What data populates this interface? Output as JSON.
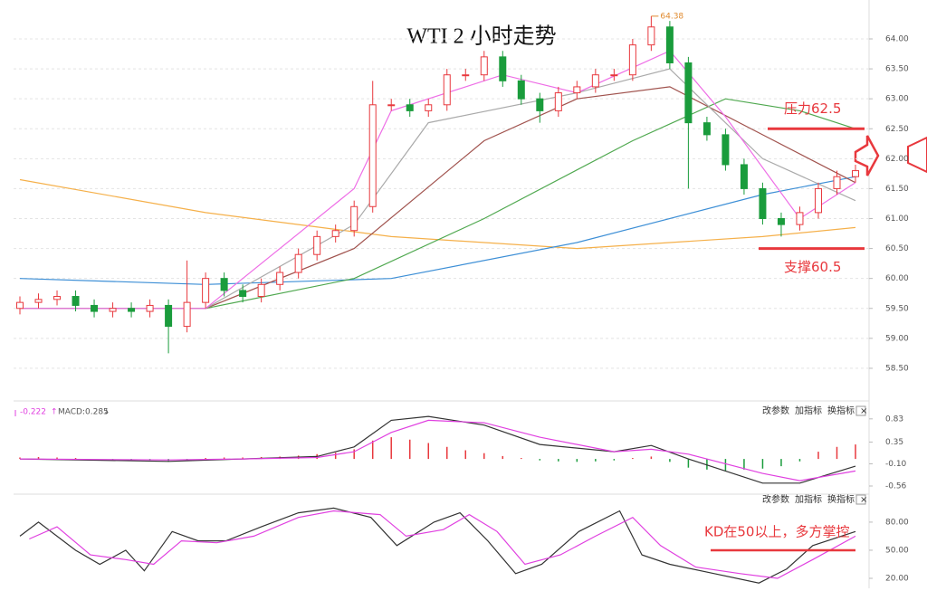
{
  "chart_data": [
    {
      "type": "candlestick",
      "title": "WTI 2 小时走势",
      "open": [
        59.5,
        59.6,
        59.65,
        59.7,
        59.55,
        59.45,
        59.5,
        59.45,
        59.55,
        59.2,
        59.6,
        60.0,
        59.8,
        59.7,
        59.9,
        60.1,
        60.4,
        60.7,
        60.8,
        61.2,
        62.9,
        62.9,
        62.8,
        62.9,
        63.4,
        63.4,
        63.7,
        63.3,
        63.0,
        62.8,
        63.1,
        63.2,
        63.4,
        63.4,
        63.9,
        64.2,
        63.6,
        62.6,
        62.4,
        61.9,
        61.5,
        61.0,
        60.9,
        61.1,
        61.5,
        61.7
      ],
      "high": [
        59.7,
        59.75,
        59.8,
        59.8,
        59.65,
        59.6,
        59.6,
        59.65,
        59.65,
        60.3,
        60.1,
        60.1,
        59.9,
        60.0,
        60.2,
        60.5,
        60.8,
        60.9,
        61.3,
        63.3,
        63.0,
        63.0,
        63.0,
        63.5,
        63.5,
        63.8,
        63.8,
        63.4,
        63.1,
        63.2,
        63.3,
        63.5,
        63.5,
        64.0,
        64.38,
        64.3,
        63.7,
        62.7,
        62.5,
        62.0,
        61.6,
        61.1,
        61.2,
        61.6,
        61.8,
        61.9
      ],
      "low": [
        59.4,
        59.5,
        59.55,
        59.45,
        59.35,
        59.35,
        59.35,
        59.35,
        58.75,
        59.1,
        59.5,
        59.7,
        59.6,
        59.6,
        59.8,
        60.0,
        60.3,
        60.6,
        60.7,
        61.1,
        62.8,
        62.7,
        62.7,
        62.8,
        63.3,
        63.3,
        63.2,
        62.9,
        62.6,
        62.7,
        63.0,
        63.1,
        63.3,
        63.3,
        63.8,
        63.5,
        61.5,
        62.3,
        61.8,
        61.4,
        60.9,
        60.7,
        60.8,
        61.0,
        61.4,
        61.6
      ],
      "close": [
        59.6,
        59.65,
        59.7,
        59.55,
        59.45,
        59.5,
        59.45,
        59.55,
        59.2,
        59.6,
        60.0,
        59.8,
        59.7,
        59.9,
        60.1,
        60.4,
        60.7,
        60.8,
        61.2,
        62.9,
        62.9,
        62.8,
        62.9,
        63.4,
        63.4,
        63.7,
        63.3,
        63.0,
        62.8,
        63.1,
        63.2,
        63.4,
        63.4,
        63.9,
        64.2,
        63.6,
        62.6,
        62.4,
        61.9,
        61.5,
        61.0,
        60.9,
        61.1,
        61.5,
        61.7,
        61.8
      ],
      "up_color": "#e8383d",
      "down_color": "#1a9c3c",
      "series": [
        {
          "color": "#f5b04a",
          "x": [
            0,
            10,
            20,
            30,
            40,
            45
          ],
          "values": [
            61.65,
            61.1,
            60.7,
            60.5,
            60.7,
            60.85
          ]
        },
        {
          "color": "#3d8fd6",
          "x": [
            0,
            10,
            20,
            30,
            40,
            45
          ],
          "values": [
            60.0,
            59.9,
            60.0,
            60.6,
            61.4,
            61.7
          ]
        },
        {
          "color": "#4fa84f",
          "x": [
            0,
            10,
            18,
            25,
            33,
            38,
            42,
            45
          ],
          "values": [
            59.5,
            59.5,
            60.0,
            61.0,
            62.3,
            63.0,
            62.8,
            62.5
          ]
        },
        {
          "color": "#a0524d",
          "x": [
            0,
            10,
            18,
            25,
            30,
            35,
            40,
            45
          ],
          "values": [
            59.5,
            59.5,
            60.5,
            62.3,
            63.0,
            63.2,
            62.4,
            61.6
          ]
        },
        {
          "color": "#aaaaaa",
          "x": [
            0,
            10,
            18,
            22,
            30,
            35,
            40,
            45
          ],
          "values": [
            59.5,
            59.5,
            60.9,
            62.6,
            63.1,
            63.5,
            62.0,
            61.3
          ]
        },
        {
          "color": "#ee6ee6",
          "x": [
            0,
            10,
            18,
            20,
            26,
            30,
            35,
            38,
            42,
            45
          ],
          "values": [
            59.5,
            59.5,
            61.5,
            62.8,
            63.4,
            63.1,
            63.8,
            62.7,
            61.0,
            61.6
          ]
        }
      ],
      "ylim": [
        58.0,
        64.65
      ],
      "yticks": [
        {
          "value": 58.5,
          "label": "58.50"
        },
        {
          "value": 59,
          "label": "59.00"
        },
        {
          "value": 59.5,
          "label": "59.50"
        },
        {
          "value": 60,
          "label": "60.00"
        },
        {
          "value": 60.5,
          "label": "60.50"
        },
        {
          "value": 61,
          "label": "61.00"
        },
        {
          "value": 61.5,
          "label": "61.50"
        },
        {
          "value": 62,
          "label": "62.00"
        },
        {
          "value": 62.5,
          "label": "62.50"
        },
        {
          "value": 63,
          "label": "63.00"
        },
        {
          "value": 63.5,
          "label": "63.50"
        },
        {
          "value": 64,
          "label": "64.00"
        }
      ],
      "grid": true,
      "max_label": {
        "value": 64.38,
        "label": "64.38"
      },
      "levels": [
        {
          "text": "压力62.5",
          "value": 62.5
        },
        {
          "text": "支撑60.5",
          "value": 60.5
        }
      ]
    },
    {
      "type": "macd",
      "dea_label": "-0.222",
      "macd_label": "MACD:0.285",
      "buttons": [
        "改参数",
        "加指标",
        "换指标",
        "×"
      ],
      "values": [
        0.03,
        0.04,
        0.03,
        0.02,
        0.0,
        -0.02,
        -0.03,
        -0.03,
        -0.05,
        -0.02,
        0.02,
        0.03,
        0.03,
        0.04,
        0.05,
        0.07,
        0.1,
        0.13,
        0.2,
        0.38,
        0.45,
        0.4,
        0.33,
        0.25,
        0.18,
        0.12,
        0.06,
        0.02,
        -0.03,
        -0.05,
        -0.06,
        -0.05,
        -0.03,
        0.02,
        0.05,
        -0.06,
        -0.18,
        -0.22,
        -0.24,
        -0.22,
        -0.2,
        -0.15,
        -0.05,
        0.15,
        0.25,
        0.3
      ],
      "up_color": "#e8383d",
      "down_color": "#1a9c3c",
      "series": [
        {
          "color": "#333333",
          "x": [
            0,
            8,
            12,
            16,
            18,
            20,
            22,
            25,
            28,
            32,
            34,
            36,
            40,
            42,
            45
          ],
          "values": [
            0.0,
            -0.05,
            0.0,
            0.05,
            0.25,
            0.8,
            0.88,
            0.7,
            0.3,
            0.15,
            0.28,
            0.0,
            -0.5,
            -0.5,
            -0.15
          ]
        },
        {
          "color": "#e040e0",
          "x": [
            0,
            8,
            12,
            16,
            18,
            20,
            22,
            25,
            28,
            32,
            34,
            36,
            40,
            42,
            45
          ],
          "values": [
            0.0,
            -0.02,
            0.0,
            0.03,
            0.15,
            0.55,
            0.8,
            0.75,
            0.45,
            0.15,
            0.2,
            0.1,
            -0.3,
            -0.45,
            -0.25
          ]
        }
      ],
      "ylim": [
        -0.71,
        1.07
      ],
      "yticks": [
        0.83,
        0.35,
        {
          "value": -0.1,
          "label": "-0.10"
        },
        -0.56
      ]
    },
    {
      "type": "kd",
      "buttons": [
        "改参数",
        "加指标",
        "换指标",
        "×"
      ],
      "series": [
        {
          "color": "#333333",
          "x": [
            0,
            1,
            3,
            4.3,
            5.7,
            6.7,
            8.2,
            9.6,
            11.1,
            13,
            15,
            16.9,
            18.9,
            20.3,
            22.3,
            23.7,
            25.2,
            26.7,
            28.1,
            30.1,
            32.3,
            33.5,
            35,
            37.4,
            39.8,
            41.3,
            42.7,
            45
          ],
          "values": [
            65,
            80,
            50,
            35,
            50,
            28,
            70,
            60,
            60,
            75,
            90,
            95,
            85,
            55,
            80,
            90,
            60,
            25,
            35,
            70,
            92,
            45,
            35,
            25,
            15,
            30,
            55,
            70
          ]
        },
        {
          "color": "#e040e0",
          "x": [
            0.5,
            2,
            3.8,
            5.7,
            7.2,
            8.7,
            10.6,
            12.6,
            15,
            16.9,
            19.4,
            20.8,
            22.8,
            24.2,
            25.7,
            27.2,
            29.1,
            31,
            33,
            34.5,
            36.4,
            38.8,
            40.8,
            42.7,
            45
          ],
          "values": [
            62,
            75,
            45,
            40,
            35,
            60,
            58,
            65,
            85,
            92,
            88,
            65,
            72,
            88,
            70,
            35,
            45,
            65,
            85,
            55,
            32,
            25,
            20,
            40,
            65
          ]
        }
      ],
      "ylim": [
        11.3,
        106
      ],
      "yticks": [
        {
          "value": 80,
          "label": "80.00"
        },
        {
          "value": 50,
          "label": "50.00"
        },
        {
          "value": 20,
          "label": "20.00"
        }
      ],
      "annotation": {
        "text": "KD在50以上，多方掌控",
        "value": 50
      }
    }
  ]
}
